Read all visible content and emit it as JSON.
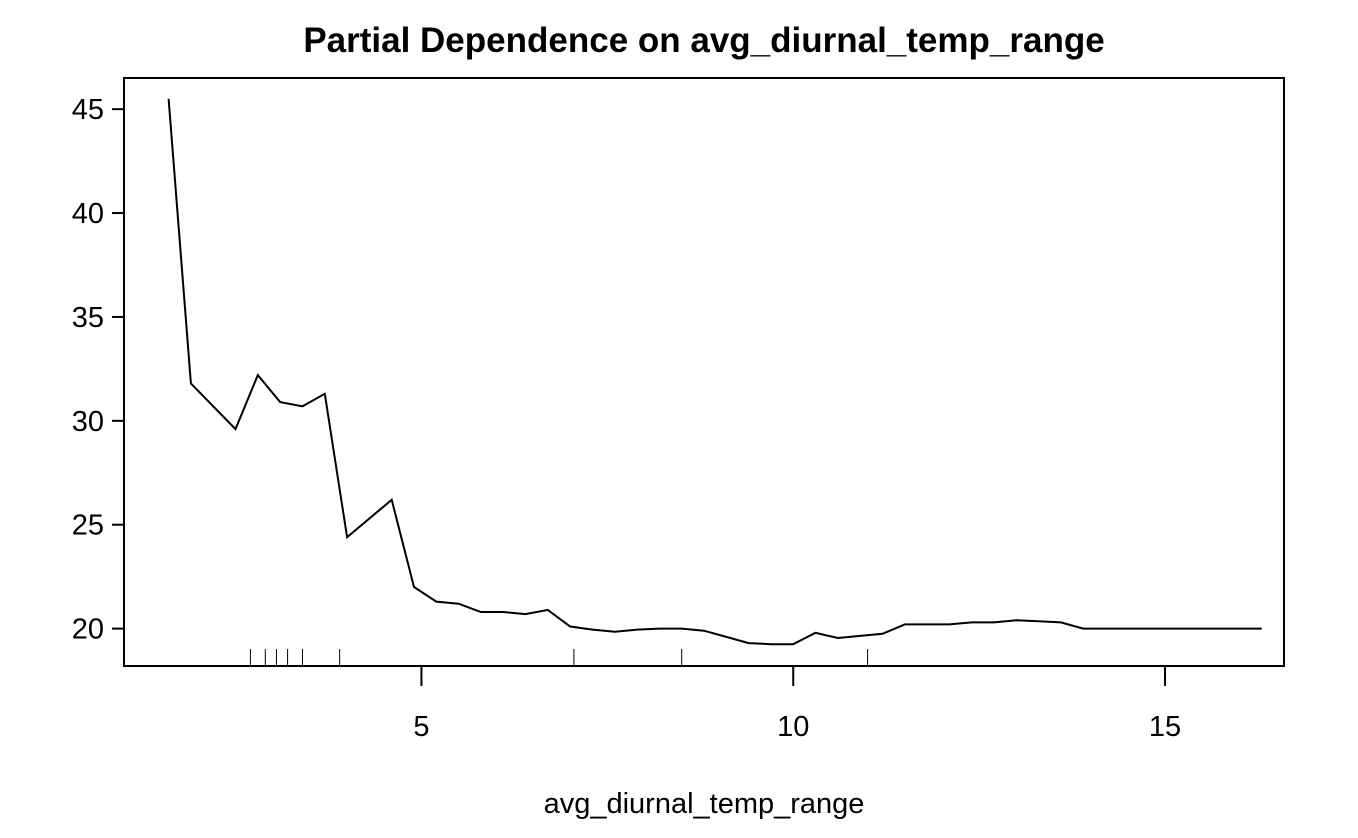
{
  "chart_data": {
    "type": "line",
    "title": "Partial Dependence on avg_diurnal_temp_range",
    "xlabel": "avg_diurnal_temp_range",
    "ylabel": "",
    "xlim": [
      1.0,
      16.6
    ],
    "ylim": [
      18.2,
      46.5
    ],
    "x_ticks": [
      5,
      10,
      15
    ],
    "y_ticks": [
      20,
      25,
      30,
      35,
      40,
      45
    ],
    "grid": false,
    "legend": null,
    "series": [
      {
        "x": [
          1.6,
          1.9,
          2.2,
          2.5,
          2.8,
          3.1,
          3.4,
          3.7,
          4.0,
          4.3,
          4.6,
          4.9,
          5.2,
          5.5,
          5.8,
          6.1,
          6.4,
          6.7,
          7.0,
          7.3,
          7.6,
          7.9,
          8.2,
          8.5,
          8.8,
          9.1,
          9.4,
          9.7,
          10.0,
          10.3,
          10.6,
          10.9,
          11.2,
          11.5,
          11.8,
          12.1,
          12.4,
          12.7,
          13.0,
          13.3,
          13.6,
          13.9,
          14.2,
          14.5,
          14.8,
          15.1,
          15.4,
          15.7,
          16.0,
          16.3
        ],
        "y": [
          45.5,
          31.8,
          30.7,
          29.6,
          32.2,
          30.9,
          30.7,
          31.3,
          24.4,
          25.3,
          26.2,
          22.0,
          21.3,
          21.2,
          20.8,
          20.8,
          20.7,
          20.9,
          20.1,
          19.95,
          19.85,
          19.95,
          20.0,
          20.0,
          19.9,
          19.6,
          19.3,
          19.25,
          19.25,
          19.8,
          19.55,
          19.65,
          19.75,
          20.2,
          20.2,
          20.2,
          20.3,
          20.3,
          20.4,
          20.35,
          20.3,
          20.0,
          20.0,
          20.0,
          20.0,
          20.0,
          20.0,
          20.0,
          20.0,
          20.0
        ]
      }
    ],
    "rug": [
      2.7,
      2.9,
      3.05,
      3.2,
      3.4,
      3.9,
      7.05,
      8.5,
      11.0
    ]
  }
}
